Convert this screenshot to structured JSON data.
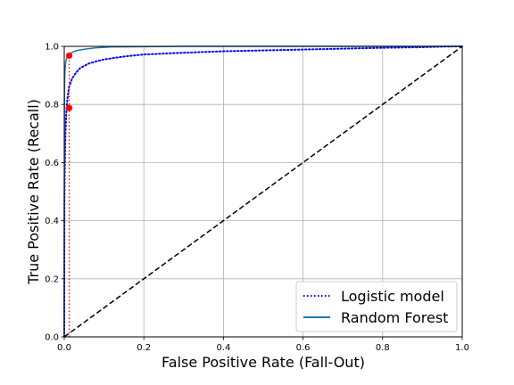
{
  "chart_data": {
    "type": "line",
    "xlabel": "False Positive Rate (Fall-Out)",
    "ylabel": "True Positive Rate (Recall)",
    "xlim": [
      0,
      1
    ],
    "ylim": [
      0,
      1
    ],
    "xticks": [
      "0.0",
      "0.2",
      "0.4",
      "0.6",
      "0.8",
      "1.0"
    ],
    "yticks": [
      "0.0",
      "0.2",
      "0.4",
      "0.6",
      "0.8",
      "1.0"
    ],
    "grid": true,
    "legend_position": "bottom-right",
    "series": [
      {
        "name": "Logistic model",
        "style": "dotted",
        "color": "#0000ff",
        "x": [
          0,
          0.0005,
          0.001,
          0.002,
          0.003,
          0.005,
          0.008,
          0.012,
          0.02,
          0.03,
          0.04,
          0.06,
          0.08,
          0.1,
          0.15,
          0.2,
          0.3,
          0.4,
          0.5,
          0.6,
          0.7,
          0.8,
          0.9,
          0.95,
          1.0
        ],
        "y": [
          0,
          0.45,
          0.55,
          0.63,
          0.7,
          0.77,
          0.82,
          0.86,
          0.89,
          0.91,
          0.925,
          0.94,
          0.948,
          0.955,
          0.965,
          0.972,
          0.978,
          0.983,
          0.986,
          0.989,
          0.992,
          0.995,
          0.997,
          0.999,
          1.0
        ]
      },
      {
        "name": "Random Forest",
        "style": "solid",
        "color": "#1f77b4",
        "x": [
          0,
          0.0005,
          0.001,
          0.002,
          0.004,
          0.008,
          0.012,
          0.02,
          0.03,
          0.05,
          0.08,
          0.12,
          0.2,
          0.3,
          0.5,
          1.0
        ],
        "y": [
          0,
          0.82,
          0.88,
          0.92,
          0.95,
          0.966,
          0.972,
          0.979,
          0.985,
          0.99,
          0.995,
          0.998,
          0.999,
          1.0,
          1.0,
          1.0
        ]
      },
      {
        "style": "dashed",
        "color": "#000000",
        "x": [
          0,
          1
        ],
        "y": [
          0,
          1
        ]
      }
    ],
    "markers": [
      {
        "x": 0.0125,
        "y": 0.968,
        "color": "#ff0000"
      },
      {
        "x": 0.0125,
        "y": 0.788,
        "color": "#ff0000"
      }
    ],
    "reference_lines": [
      {
        "x": [
          0.0125,
          0.0125
        ],
        "y": [
          0,
          0.788
        ],
        "style": "dotted",
        "color": "#ff0000"
      },
      {
        "x": [
          0.0125,
          0.0125
        ],
        "y": [
          0.788,
          0.968
        ],
        "style": "dotted",
        "color": "#ff0000"
      }
    ]
  }
}
